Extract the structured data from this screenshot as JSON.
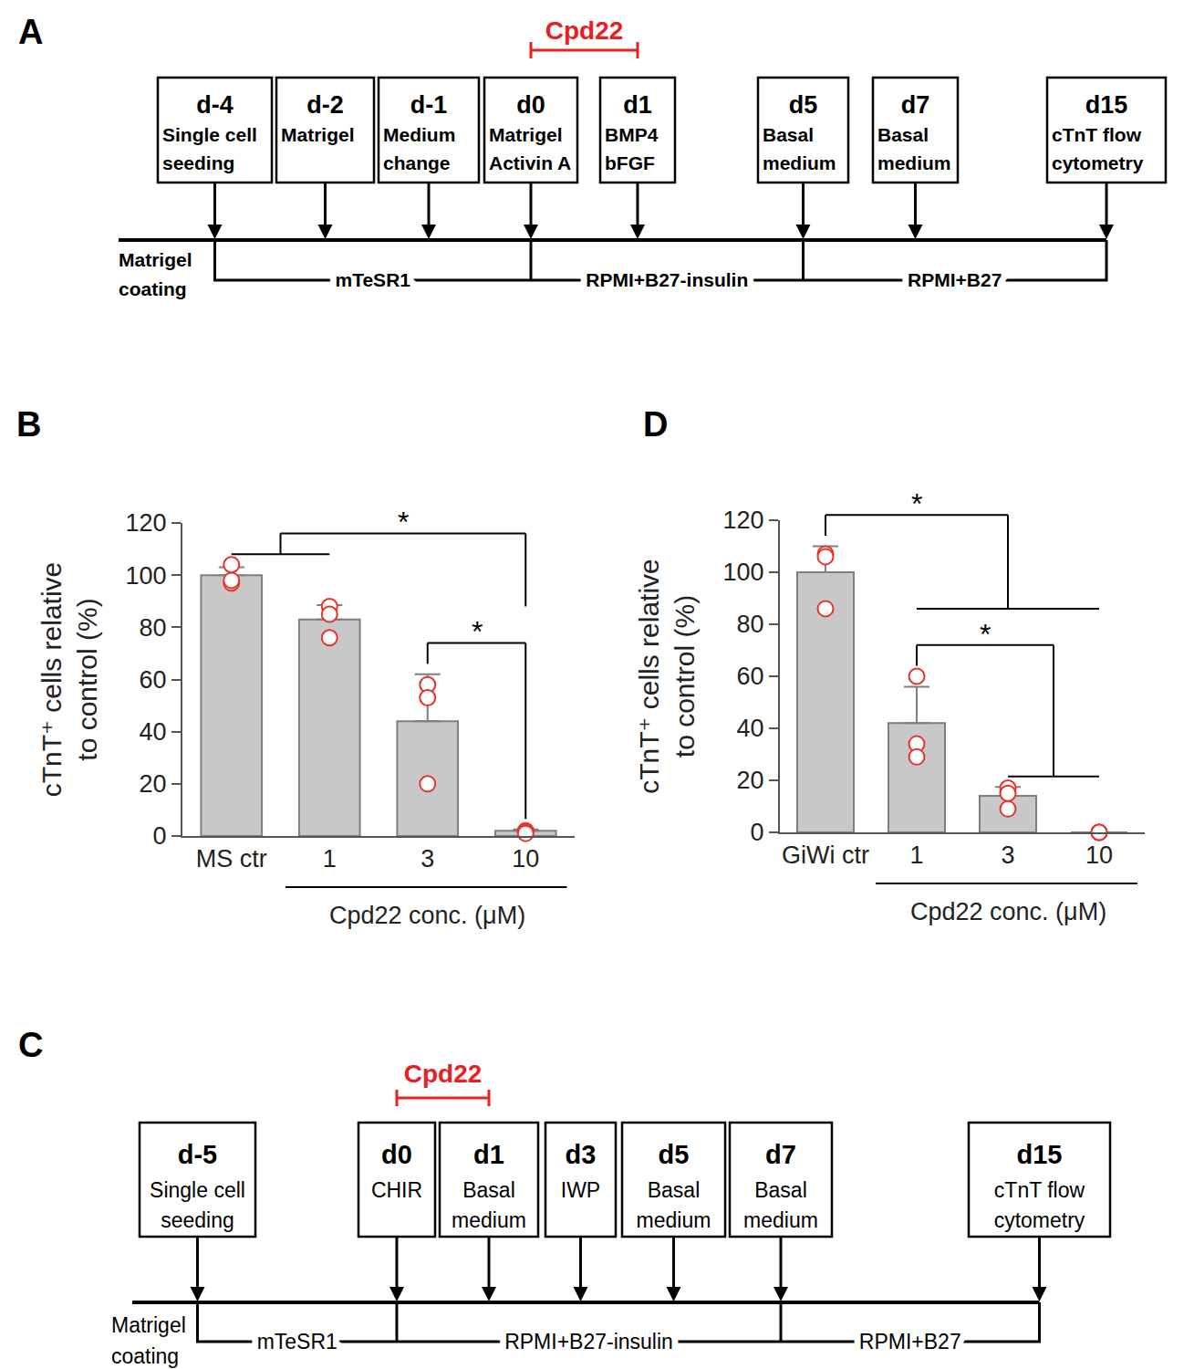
{
  "chart_data": [
    {
      "type": "bar",
      "panel_label": "B",
      "categories": [
        "MS ctr",
        "1",
        "3",
        "10"
      ],
      "values": [
        100,
        83,
        44,
        2
      ],
      "error": [
        3,
        5.5,
        18,
        0.5
      ],
      "color": "#c8c8c8",
      "points": {
        "type": "scatter",
        "marker": "circle",
        "color": "#e8322a",
        "values": [
          [
            104,
            97,
            98
          ],
          [
            88,
            85,
            76
          ],
          [
            58,
            53,
            20
          ],
          [
            2,
            1.5,
            1
          ]
        ]
      },
      "y_label": [
        "cTnT⁺ cells relative",
        "to control (%)"
      ],
      "x_label": "Cpd22 conc. (μM)",
      "ylim": [
        0,
        120
      ],
      "yticks": [
        0,
        20,
        40,
        60,
        80,
        100,
        120
      ],
      "grid": false,
      "significance": [
        {
          "groups": [
            [
              "MS ctr",
              "1"
            ],
            [
              "10"
            ]
          ],
          "label": "*"
        },
        {
          "groups": [
            [
              "3"
            ],
            [
              "10"
            ]
          ],
          "label": "*"
        }
      ]
    },
    {
      "type": "bar",
      "panel_label": "D",
      "categories": [
        "GiWi ctr",
        "1",
        "3",
        "10"
      ],
      "values": [
        100,
        42,
        14,
        0
      ],
      "error": [
        10,
        14,
        3.5,
        0
      ],
      "color": "#c8c8c8",
      "points": {
        "type": "scatter",
        "marker": "circle",
        "color": "#e8322a",
        "values": [
          [
            107,
            106,
            86
          ],
          [
            60,
            34,
            29
          ],
          [
            17,
            15,
            9
          ],
          [
            0,
            0,
            0
          ]
        ]
      },
      "y_label": [
        "cTnT⁺ cells relative",
        "to control (%)"
      ],
      "x_label": "Cpd22 conc. (μM)",
      "ylim": [
        0,
        120
      ],
      "yticks": [
        0,
        20,
        40,
        60,
        80,
        100,
        120
      ],
      "grid": false,
      "significance": [
        {
          "groups": [
            [
              "GiWi ctr"
            ],
            [
              "1",
              "3",
              "10"
            ]
          ],
          "label": "*"
        },
        {
          "groups": [
            [
              "1"
            ],
            [
              "3",
              "10"
            ]
          ],
          "label": "*"
        }
      ]
    }
  ],
  "diagrams": [
    {
      "panel_label": "A",
      "steps": [
        {
          "day": "d-4",
          "lines": [
            "Single cell",
            "seeding"
          ]
        },
        {
          "day": "d-2",
          "lines": [
            "Matrigel"
          ]
        },
        {
          "day": "d-1",
          "lines": [
            "Medium",
            "change"
          ]
        },
        {
          "day": "d0",
          "lines": [
            "Matrigel",
            "Activin A"
          ]
        },
        {
          "day": "d1",
          "lines": [
            "BMP4",
            "bFGF"
          ]
        },
        {
          "day": "d5",
          "lines": [
            "Basal",
            "medium"
          ]
        },
        {
          "day": "d7",
          "lines": [
            "Basal",
            "medium"
          ]
        },
        {
          "day": "d15",
          "lines": [
            "cTnT flow",
            "cytometry"
          ]
        }
      ],
      "coating": [
        "Matrigel",
        "coating"
      ],
      "media": [
        {
          "text": "mTeSR1",
          "from": "d-4",
          "to": "d0"
        },
        {
          "text": "RPMI+B27-insulin",
          "from": "d0",
          "to": "d5"
        },
        {
          "text": "RPMI+B27",
          "from": "d5",
          "to": "d15"
        }
      ],
      "treatment": {
        "text": "Cpd22",
        "from": "d0",
        "to": "d1",
        "color": "#e8201f"
      }
    },
    {
      "panel_label": "C",
      "steps": [
        {
          "day": "d-5",
          "lines": [
            "Single cell",
            "seeding"
          ]
        },
        {
          "day": "d0",
          "lines": [
            "CHIR"
          ]
        },
        {
          "day": "d1",
          "lines": [
            "Basal",
            "medium"
          ]
        },
        {
          "day": "d3",
          "lines": [
            "IWP"
          ]
        },
        {
          "day": "d5",
          "lines": [
            "Basal",
            "medium"
          ]
        },
        {
          "day": "d7",
          "lines": [
            "Basal",
            "medium"
          ]
        },
        {
          "day": "d15",
          "lines": [
            "cTnT flow",
            "cytometry"
          ]
        }
      ],
      "coating": [
        "Matrigel",
        "coating"
      ],
      "media": [
        {
          "text": "mTeSR1",
          "from": "d-5",
          "to": "d0"
        },
        {
          "text": "RPMI+B27-insulin",
          "from": "d0",
          "to": "d7"
        },
        {
          "text": "RPMI+B27",
          "from": "d7",
          "to": "d15"
        }
      ],
      "treatment": {
        "text": "Cpd22",
        "from": "d0",
        "to": "d1",
        "color": "#e8201f"
      }
    }
  ]
}
